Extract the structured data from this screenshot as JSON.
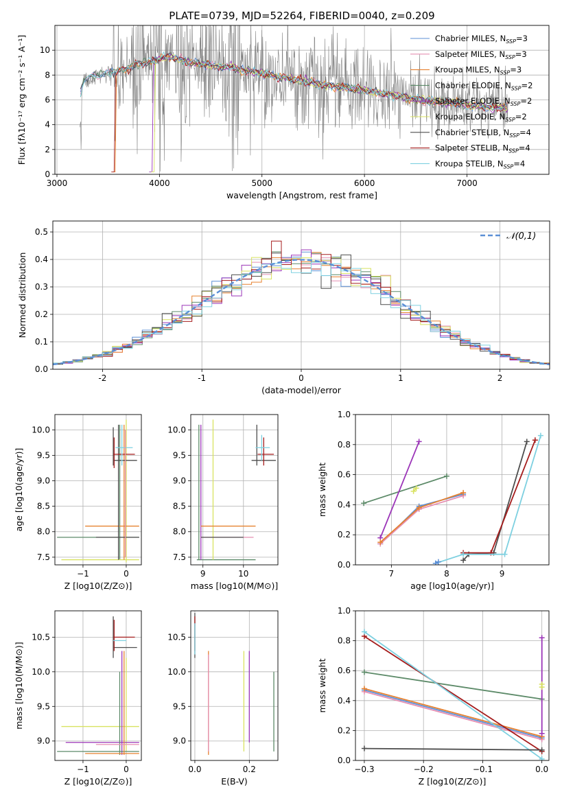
{
  "figure_title": "PLATE=0739, MJD=52264, FIBERID=0040, z=0.209",
  "colors": {
    "chabrier_miles": "#5b8fd6",
    "salpeter_miles": "#e58fb2",
    "kroupa_miles": "#e6812f",
    "chabrier_elodie": "#5c8a68",
    "salpeter_elodie": "#9b34b8",
    "kroupa_elodie": "#d8e25f",
    "chabrier_stelib": "#4d4d4d",
    "salpeter_stelib": "#a51c1c",
    "kroupa_stelib": "#7dd0e0",
    "data_spectrum": "#808080",
    "normal_curve": "#5b8fd6"
  },
  "legend_labels": [
    {
      "label": "Chabrier MILES, N",
      "sub": "SSP",
      "tail": "=3",
      "color": "#5b8fd6"
    },
    {
      "label": "Salpeter MILES, N",
      "sub": "SSP",
      "tail": "=3",
      "color": "#e58fb2"
    },
    {
      "label": "Kroupa MILES, N",
      "sub": "SSP",
      "tail": "=3",
      "color": "#e6812f"
    },
    {
      "label": "Chabrier ELODIE, N",
      "sub": "SSP",
      "tail": "=2",
      "color": "#5c8a68"
    },
    {
      "label": "Salpeter ELODIE, N",
      "sub": "SSP",
      "tail": "=2",
      "color": "#9b34b8"
    },
    {
      "label": "Kroupa ELODIE, N",
      "sub": "SSP",
      "tail": "=2",
      "color": "#d8e25f"
    },
    {
      "label": "Chabrier STELIB, N",
      "sub": "SSP",
      "tail": "=4",
      "color": "#4d4d4d"
    },
    {
      "label": "Salpeter STELIB, N",
      "sub": "SSP",
      "tail": "=4",
      "color": "#a51c1c"
    },
    {
      "label": "Kroupa STELIB, N",
      "sub": "SSP",
      "tail": "=4",
      "color": "#7dd0e0"
    }
  ],
  "chart_data": [
    {
      "id": "spectrum",
      "type": "line",
      "xlabel": "wavelength [Angstrom, rest frame]",
      "ylabel": "Flux [fλ10⁻¹⁷ erg cm⁻² s⁻¹ A⁻¹]",
      "xlim": [
        2980,
        7800
      ],
      "ylim": [
        0,
        12
      ],
      "xticks": [
        3000,
        4000,
        5000,
        6000,
        7000
      ],
      "yticks": [
        0,
        2,
        4,
        6,
        8,
        10
      ],
      "legend_placement": "upper-right",
      "model_curve": {
        "x": [
          3220,
          3260,
          3300,
          3400,
          3500,
          3600,
          3700,
          3800,
          3900,
          4000,
          4100,
          4200,
          4300,
          4400,
          4500,
          4600,
          4700,
          4800,
          4900,
          5000,
          5200,
          5400,
          5600,
          5800,
          6000,
          6200,
          6400,
          6600,
          6800,
          7000,
          7200,
          7400
        ],
        "y": [
          6.2,
          7.5,
          7.8,
          8.0,
          8.2,
          8.3,
          8.6,
          8.9,
          9.0,
          9.3,
          9.5,
          9.3,
          9.0,
          8.9,
          8.8,
          8.6,
          8.7,
          8.4,
          8.3,
          8.1,
          7.8,
          7.5,
          7.2,
          7.0,
          6.8,
          6.5,
          6.2,
          5.9,
          5.8,
          5.6,
          5.4,
          5.4
        ]
      }
    },
    {
      "id": "residuals",
      "type": "histogram",
      "xlabel": "(data-model)/error",
      "ylabel": "Normed distribution",
      "xlim": [
        -2.5,
        2.5
      ],
      "ylim": [
        0,
        0.54
      ],
      "xticks": [
        -2,
        -1,
        0,
        1,
        2
      ],
      "yticks": [
        0.0,
        0.1,
        0.2,
        0.3,
        0.4,
        0.5
      ],
      "legend": "N(0,1)",
      "bin_width": 0.1
    },
    {
      "id": "age_vs_Z",
      "type": "errorbar",
      "xlabel": "Z [log10(Z/Z⊙)]",
      "ylabel": "age [log10(age/yr)]",
      "xlim": [
        -1.65,
        0.35
      ],
      "ylim": [
        7.35,
        10.3
      ],
      "xticks": [
        -1,
        0
      ],
      "yticks": [
        7.5,
        8.0,
        8.5,
        9.0,
        9.5,
        10.0
      ]
    },
    {
      "id": "age_vs_mass",
      "type": "errorbar",
      "xlabel": "mass [log10(M/M⊙)]",
      "xlim": [
        8.7,
        10.85
      ],
      "ylim": [
        7.35,
        10.3
      ],
      "xticks": [
        9,
        10
      ],
      "yticks": [
        7.5,
        8.0,
        8.5,
        9.0,
        9.5,
        10.0
      ]
    },
    {
      "id": "weight_vs_age",
      "type": "line",
      "xlabel": "age [log10(age/yr)]",
      "ylabel": "mass weight",
      "xlim": [
        6.35,
        9.85
      ],
      "ylim": [
        0,
        1
      ],
      "xticks": [
        7,
        8,
        9
      ],
      "yticks": [
        0.0,
        0.2,
        0.4,
        0.6,
        0.8,
        1.0
      ],
      "series": [
        {
          "color": "#5c8a68",
          "x": [
            6.5,
            8.0
          ],
          "y": [
            0.41,
            0.59
          ]
        },
        {
          "color": "#9b34b8",
          "x": [
            6.8,
            7.5
          ],
          "y": [
            0.18,
            0.82
          ]
        },
        {
          "color": "#d8e25f",
          "x": [
            7.4,
            7.45
          ],
          "y": [
            0.49,
            0.51
          ]
        },
        {
          "color": "#5b8fd6",
          "x": [
            6.8,
            7.5,
            8.3
          ],
          "y": [
            0.14,
            0.39,
            0.47
          ]
        },
        {
          "color": "#e58fb2",
          "x": [
            6.8,
            7.5,
            8.3
          ],
          "y": [
            0.14,
            0.37,
            0.46
          ]
        },
        {
          "color": "#e6812f",
          "x": [
            6.8,
            7.5,
            8.3
          ],
          "y": [
            0.15,
            0.38,
            0.48
          ]
        },
        {
          "color": "#4d4d4d",
          "x": [
            8.3,
            8.4,
            8.85,
            9.45
          ],
          "y": [
            0.03,
            0.07,
            0.08,
            0.82
          ]
        },
        {
          "color": "#a51c1c",
          "x": [
            8.3,
            8.8,
            9.6
          ],
          "y": [
            0.08,
            0.08,
            0.83
          ]
        },
        {
          "color": "#7dd0e0",
          "x": [
            7.8,
            8.3,
            9.05,
            9.7
          ],
          "y": [
            0.01,
            0.07,
            0.07,
            0.86
          ]
        },
        {
          "color": "#5b8fd6",
          "x": [
            7.8,
            7.85
          ],
          "y": [
            0.01,
            0.02
          ]
        }
      ]
    },
    {
      "id": "mass_vs_Z",
      "type": "errorbar",
      "xlabel": "Z [log10(Z/Z⊙)]",
      "ylabel": "mass [log10(M/M⊙)]",
      "xlim": [
        -1.65,
        0.35
      ],
      "ylim": [
        8.72,
        10.88
      ],
      "xticks": [
        -1,
        0
      ],
      "yticks": [
        9.0,
        9.5,
        10.0,
        10.5
      ]
    },
    {
      "id": "mass_vs_ebv",
      "type": "errorbar",
      "xlabel": "E(B-V)",
      "xlim": [
        -0.015,
        0.305
      ],
      "ylim": [
        8.72,
        10.88
      ],
      "xticks": [
        0.0,
        0.2
      ],
      "yticks": [
        9.0,
        9.5,
        10.0,
        10.5
      ]
    },
    {
      "id": "weight_vs_Z",
      "type": "line",
      "xlabel": "Z [log10(Z/Z⊙)]",
      "ylabel": "mass weight",
      "xlim": [
        -0.315,
        0.012
      ],
      "ylim": [
        0,
        1
      ],
      "xticks": [
        -0.3,
        -0.2,
        -0.1,
        0.0
      ],
      "yticks": [
        0.0,
        0.2,
        0.4,
        0.6,
        0.8,
        1.0
      ],
      "series": [
        {
          "color": "#5c8a68",
          "x": [
            -0.3,
            0.0
          ],
          "y": [
            0.59,
            0.41
          ]
        },
        {
          "color": "#5b8fd6",
          "x": [
            -0.3,
            0.0
          ],
          "y": [
            0.47,
            0.15
          ]
        },
        {
          "color": "#e58fb2",
          "x": [
            -0.3,
            0.0
          ],
          "y": [
            0.46,
            0.14
          ]
        },
        {
          "color": "#e6812f",
          "x": [
            -0.3,
            0.0
          ],
          "y": [
            0.48,
            0.16
          ]
        },
        {
          "color": "#a51c1c",
          "x": [
            -0.3,
            0.0
          ],
          "y": [
            0.83,
            0.06
          ]
        },
        {
          "color": "#7dd0e0",
          "x": [
            -0.3,
            0.0
          ],
          "y": [
            0.86,
            0.01
          ]
        },
        {
          "color": "#4d4d4d",
          "x": [
            -0.3,
            0.0
          ],
          "y": [
            0.08,
            0.07
          ]
        },
        {
          "color": "#9b34b8",
          "x": [
            0.0,
            0.0
          ],
          "y": [
            0.18,
            0.82
          ]
        },
        {
          "color": "#d8e25f",
          "x": [
            0.0,
            0.0
          ],
          "y": [
            0.49,
            0.51
          ]
        }
      ]
    }
  ]
}
